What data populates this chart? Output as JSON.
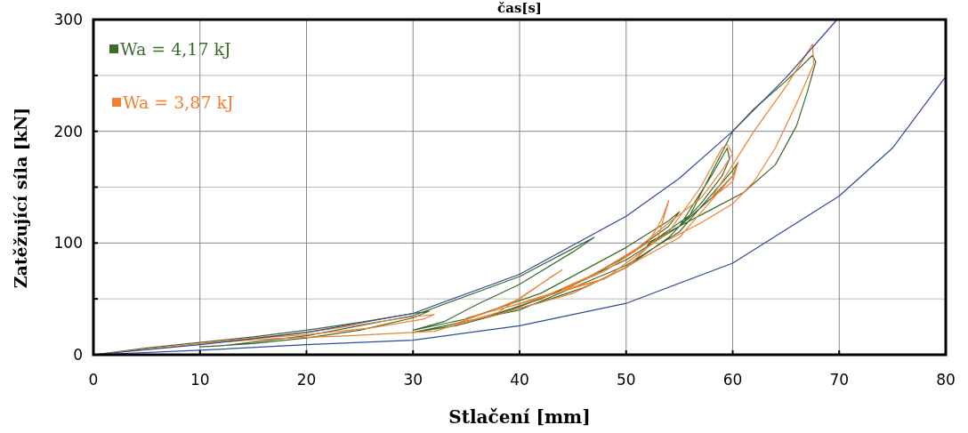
{
  "chart_data": {
    "type": "line",
    "title": "čas[s]",
    "xlabel": "Stlačení [mm]",
    "ylabel": "Zatěžující síla [kN]",
    "xlim": [
      0,
      80
    ],
    "xticks": [
      0,
      10,
      20,
      30,
      40,
      50,
      60,
      70,
      80
    ],
    "ylim": [
      0,
      300
    ],
    "yticks": [
      0,
      {
        "value": 50,
        "label": null
      },
      100,
      {
        "value": 150,
        "label": null
      },
      200,
      {
        "value": 250,
        "label": null
      },
      300
    ],
    "grid": true,
    "legend": "top left",
    "series": [
      {
        "name": "Wa = 4,17 kJ",
        "color": "#3d6b2c",
        "x": [
          0,
          5,
          10,
          15,
          20,
          25,
          30,
          31.5,
          30,
          25,
          20,
          15,
          10,
          12,
          20,
          30,
          40,
          45,
          47,
          45,
          40,
          36,
          33,
          30,
          35,
          42,
          50,
          54,
          55,
          54,
          50,
          45,
          40,
          36,
          42,
          50,
          55,
          58,
          59.5,
          59.7,
          59,
          57,
          54,
          50,
          46,
          42,
          38,
          34,
          30,
          40,
          50,
          55,
          60,
          60.5,
          60,
          58,
          55,
          52,
          56,
          60,
          62,
          65,
          67.5,
          67.8,
          67,
          66,
          64,
          61,
          58,
          55,
          52
        ],
        "values": [
          0,
          6,
          11,
          16,
          22,
          29,
          37,
          39,
          33,
          22,
          15,
          10,
          7,
          8,
          17,
          35,
          70,
          95,
          105,
          92,
          63,
          45,
          30,
          22,
          32,
          55,
          96,
          120,
          128,
          115,
          88,
          62,
          43,
          31,
          50,
          85,
          115,
          160,
          185,
          175,
          160,
          135,
          105,
          78,
          60,
          47,
          36,
          26,
          20,
          40,
          80,
          110,
          165,
          172,
          160,
          140,
          115,
          98,
          125,
          200,
          220,
          245,
          268,
          262,
          235,
          205,
          170,
          145,
          130,
          115,
          100
        ]
      },
      {
        "name": "Wa = 3,87 kJ",
        "color": "#f08032",
        "x": [
          0,
          5,
          10,
          15,
          20,
          25,
          30,
          32,
          31,
          26,
          20,
          14,
          10,
          16,
          24,
          32,
          38,
          44,
          43,
          40,
          37,
          34,
          38,
          45,
          50,
          53,
          54,
          53.5,
          53,
          52,
          48,
          44,
          48,
          54,
          57,
          59,
          59.5,
          60,
          59,
          57,
          54,
          51,
          47,
          43,
          39,
          35,
          41,
          48,
          55,
          60,
          60.5,
          60,
          58,
          62,
          65,
          67.5,
          67.6,
          66,
          64,
          62,
          60,
          57,
          54
        ],
        "values": [
          0,
          5,
          10,
          15,
          20,
          27,
          34,
          36,
          32,
          24,
          18,
          14,
          10,
          14,
          17,
          21,
          38,
          76,
          70,
          50,
          38,
          28,
          36,
          55,
          78,
          105,
          138,
          125,
          115,
          100,
          75,
          58,
          68,
          110,
          150,
          185,
          188,
          180,
          165,
          140,
          118,
          95,
          72,
          55,
          43,
          33,
          48,
          68,
          105,
          160,
          172,
          155,
          140,
          200,
          240,
          278,
          260,
          225,
          185,
          155,
          135,
          118,
          103
        ]
      },
      {
        "color": "#2f4a9a",
        "x": [
          0,
          10,
          20,
          30,
          40,
          50,
          55,
          60,
          65,
          69.8
        ],
        "values": [
          0,
          9,
          20,
          37,
          72,
          124,
          158,
          200,
          248,
          300
        ]
      },
      {
        "color": "#2f4a9a",
        "x": [
          0,
          10,
          20,
          30,
          40,
          50,
          60,
          70,
          75,
          80
        ],
        "values": [
          0,
          4,
          9,
          13,
          26,
          46,
          82,
          142,
          185,
          249
        ]
      }
    ]
  }
}
